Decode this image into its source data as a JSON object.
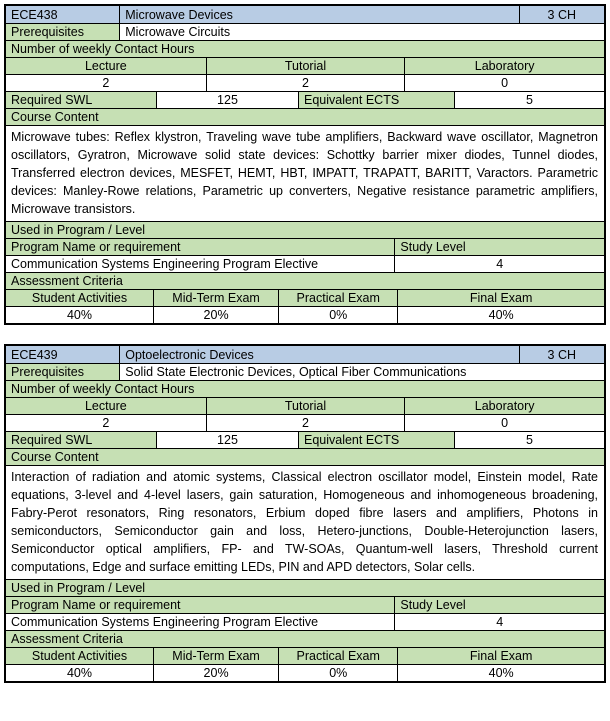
{
  "colors": {
    "header_blue": "#B8CCE4",
    "label_green": "#C6E0B4",
    "border": "#000000",
    "background": "#FFFFFF"
  },
  "labels": {
    "prerequisites": "Prerequisites",
    "weekly_contact_hours": "Number of weekly Contact Hours",
    "lecture": "Lecture",
    "tutorial": "Tutorial",
    "laboratory": "Laboratory",
    "required_swl": "Required SWL",
    "equivalent_ects": "Equivalent ECTS",
    "course_content": "Course Content",
    "used_in_program": "Used in Program / Level",
    "program_name": "Program Name or requirement",
    "study_level": "Study Level",
    "assessment_criteria": "Assessment Criteria",
    "student_activities": "Student Activities",
    "mid_term_exam": "Mid-Term Exam",
    "practical_exam": "Practical Exam",
    "final_exam": "Final Exam"
  },
  "courses": [
    {
      "code": "ECE438",
      "title": "Microwave Devices",
      "credit_hours": "3 CH",
      "prerequisites": "Microwave Circuits",
      "lecture_hours": "2",
      "tutorial_hours": "2",
      "laboratory_hours": "0",
      "required_swl": "125",
      "equivalent_ects": "5",
      "content": "Microwave tubes: Reflex klystron, Traveling wave tube amplifiers, Backward wave oscillator, Magnetron oscillators, Gyratron, Microwave solid state devices: Schottky barrier mixer diodes, Tunnel diodes, Transferred electron devices, MESFET, HEMT, HBT, IMPATT, TRAPATT, BARITT, Varactors. Parametric devices: Manley-Rowe relations, Parametric up converters, Negative resistance parametric amplifiers, Microwave transistors.",
      "program": "Communication Systems Engineering Program Elective",
      "study_level": "4",
      "assessment": {
        "student_activities": "40%",
        "mid_term": "20%",
        "practical": "0%",
        "final": "40%"
      }
    },
    {
      "code": "ECE439",
      "title": "Optoelectronic Devices",
      "credit_hours": "3 CH",
      "prerequisites": "Solid State Electronic Devices, Optical Fiber Communications",
      "lecture_hours": "2",
      "tutorial_hours": "2",
      "laboratory_hours": "0",
      "required_swl": "125",
      "equivalent_ects": "5",
      "content": "Interaction of radiation and atomic systems, Classical electron oscillator model, Einstein model, Rate equations, 3-level and 4-level lasers, gain saturation, Homogeneous and inhomogeneous broadening, Fabry-Perot resonators, Ring resonators, Erbium doped fibre lasers and amplifiers, Photons in semiconductors, Semiconductor gain and loss, Hetero-junctions, Double-Heterojunction lasers, Semiconductor optical amplifiers, FP- and TW-SOAs, Quantum-well lasers, Threshold current computations, Edge and surface emitting LEDs, PIN and APD detectors, Solar cells.",
      "program": "Communication Systems Engineering Program Elective",
      "study_level": "4",
      "assessment": {
        "student_activities": "40%",
        "mid_term": "20%",
        "practical": "0%",
        "final": "40%"
      }
    }
  ]
}
